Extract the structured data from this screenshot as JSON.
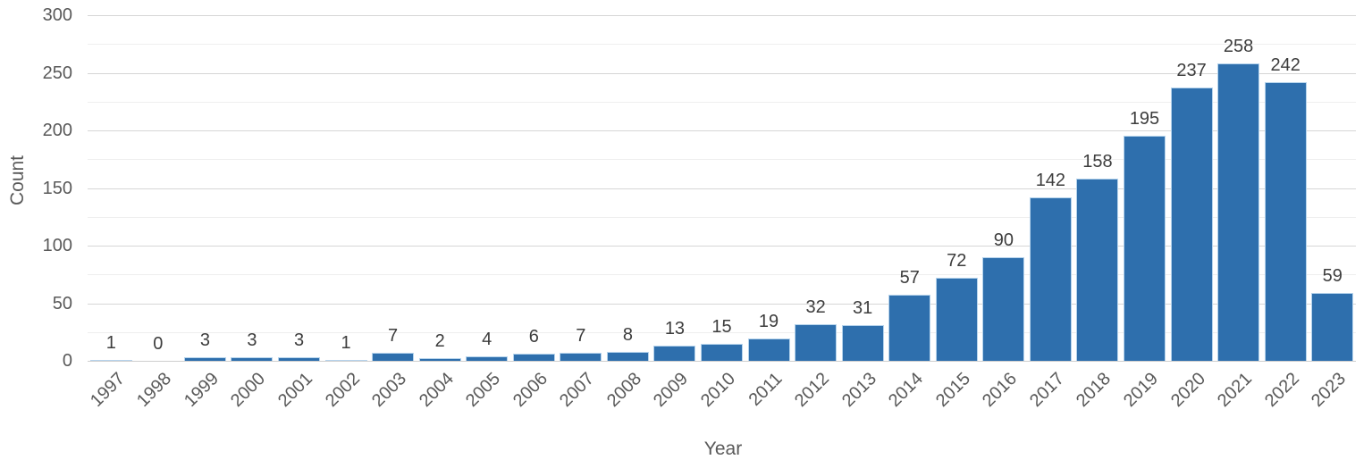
{
  "chart_data": {
    "type": "bar",
    "title": "",
    "xlabel": "Year",
    "ylabel": "Count",
    "categories": [
      "1997",
      "1998",
      "1999",
      "2000",
      "2001",
      "2002",
      "2003",
      "2004",
      "2005",
      "2006",
      "2007",
      "2008",
      "2009",
      "2010",
      "2011",
      "2012",
      "2013",
      "2014",
      "2015",
      "2016",
      "2017",
      "2018",
      "2019",
      "2020",
      "2021",
      "2022",
      "2023"
    ],
    "values": [
      1,
      0,
      3,
      3,
      3,
      1,
      7,
      2,
      4,
      6,
      7,
      8,
      13,
      15,
      19,
      32,
      31,
      57,
      72,
      90,
      142,
      158,
      195,
      237,
      258,
      242,
      59
    ],
    "ylim": [
      0,
      300
    ],
    "yticks": [
      0,
      50,
      100,
      150,
      200,
      250,
      300
    ],
    "minor_grid_step": 25,
    "grid": "on",
    "legend": "none",
    "bar_color": "#2e6fad",
    "bar_edge_color": "#b5d3ec",
    "grid_major_color": "#d6d6d6",
    "grid_minor_color": "#efefef",
    "tick_label_color": "#595959",
    "value_label_color": "#3d3d3d"
  }
}
